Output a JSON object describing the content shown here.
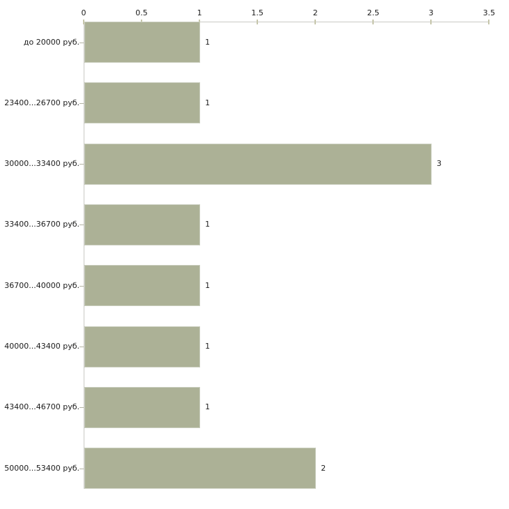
{
  "chart_data": {
    "type": "bar",
    "orientation": "horizontal",
    "title": "",
    "xlabel": "",
    "ylabel": "",
    "axis_position": "top",
    "grid": false,
    "legend": false,
    "categories": [
      "до 20000 руб.",
      "23400...26700 руб.",
      "30000...33400 руб.",
      "33400...36700 руб.",
      "36700...40000 руб.",
      "40000...43400 руб.",
      "43400...46700 руб.",
      "50000...53400 руб."
    ],
    "values": [
      1,
      1,
      3,
      1,
      1,
      1,
      1,
      2
    ],
    "value_labels": [
      "1",
      "1",
      "3",
      "1",
      "1",
      "1",
      "1",
      "2"
    ],
    "x_ticks": [
      "0",
      "0.5",
      "1",
      "1.5",
      "2",
      "2.5",
      "3",
      "3.5"
    ],
    "x_tick_values": [
      0,
      0.5,
      1,
      1.5,
      2,
      2.5,
      3,
      3.5
    ],
    "xlim": [
      0,
      3.5
    ],
    "colors": {
      "bar_fill": "#acb196",
      "bar_border": "#c9cdbd",
      "axis_line": "#c9c9c4",
      "tick_mark": "#c6c6ab",
      "y_tick_dash": "#b4b4a4",
      "text": "#1a1a1a",
      "background": "#ffffff"
    }
  }
}
